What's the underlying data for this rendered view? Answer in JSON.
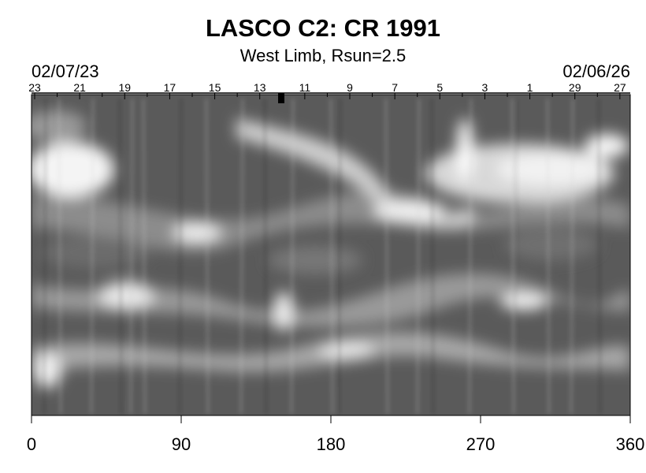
{
  "chart_data": {
    "type": "heatmap",
    "title": "LASCO C2: CR 1991",
    "subtitle": "West Limb, Rsun=2.5",
    "colormap": "grayscale",
    "xlim": [
      0,
      360
    ],
    "x_ticks": [
      "0",
      "90",
      "180",
      "270",
      "360"
    ],
    "top_date_start": "02/07/23",
    "top_date_end": "02/06/26",
    "top_day_labels": [
      "23",
      "21",
      "19",
      "17",
      "15",
      "13",
      "11",
      "9",
      "7",
      "5",
      "3",
      "1",
      "29",
      "27"
    ],
    "xlabel": "",
    "ylabel": ""
  }
}
